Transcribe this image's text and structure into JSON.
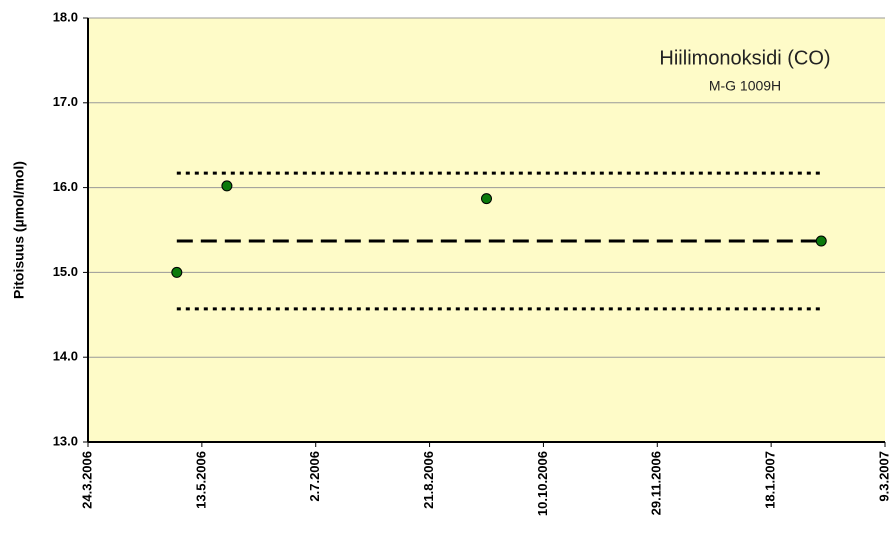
{
  "chart_data": {
    "type": "scatter",
    "title": "Hiilimonoksidi (CO)",
    "subtitle": "M-G 1009H",
    "ylabel": "Pitoisuus (µmol/mol)",
    "xlim": [
      "24.3.2006",
      "9.3.2007"
    ],
    "xticks": [
      "24.3.2006",
      "13.5.2006",
      "2.7.2006",
      "21.8.2006",
      "10.10.2006",
      "29.11.2006",
      "18.1.2007",
      "9.3.2007"
    ],
    "ylim": [
      13,
      18
    ],
    "yticks": [
      {
        "value": 13,
        "label": "13.0"
      },
      {
        "value": 14,
        "label": "14.0"
      },
      {
        "value": 15,
        "label": "15.0"
      },
      {
        "value": 16,
        "label": "16.0"
      },
      {
        "value": 17,
        "label": "17.0"
      },
      {
        "value": 18,
        "label": "18.0"
      }
    ],
    "grid": true,
    "series": [
      {
        "color": "#0b7a0b",
        "x": [
          "2.5.2006",
          "24.5.2006",
          "15.9.2006",
          "9.2.2007"
        ],
        "values": [
          15.0,
          16.02,
          15.87,
          15.37
        ]
      }
    ],
    "lines": [
      {
        "style": "dashed",
        "x": [
          "2.5.2006",
          "9.2.2007"
        ],
        "values": [
          15.37,
          15.37
        ]
      },
      {
        "style": "dotted",
        "x": [
          "2.5.2006",
          "9.2.2007"
        ],
        "values": [
          16.17,
          16.17
        ]
      },
      {
        "style": "dotted",
        "x": [
          "2.5.2006",
          "9.2.2007"
        ],
        "values": [
          14.57,
          14.57
        ]
      }
    ]
  }
}
